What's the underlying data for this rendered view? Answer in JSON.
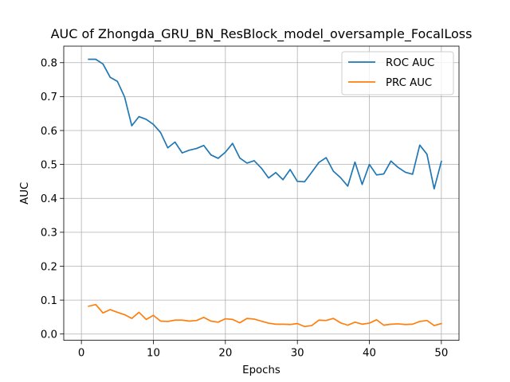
{
  "chart_data": {
    "type": "line",
    "title": "AUC of Zhongda_GRU_BN_ResBlock_model_oversample_FocalLoss",
    "xlabel": "Epochs",
    "ylabel": "AUC",
    "xlim": [
      -2.45,
      52.45
    ],
    "ylim": [
      -0.0185,
      0.8487
    ],
    "xticks": [
      0,
      10,
      20,
      30,
      40,
      50
    ],
    "yticks": [
      0.0,
      0.1,
      0.2,
      0.3,
      0.4,
      0.5,
      0.6,
      0.7,
      0.8
    ],
    "xtick_labels": [
      "0",
      "10",
      "20",
      "30",
      "40",
      "50"
    ],
    "ytick_labels": [
      "0.0",
      "0.1",
      "0.2",
      "0.3",
      "0.4",
      "0.5",
      "0.6",
      "0.7",
      "0.8"
    ],
    "grid": true,
    "legend_position": "upper right",
    "x": [
      1,
      2,
      3,
      4,
      5,
      6,
      7,
      8,
      9,
      10,
      11,
      12,
      13,
      14,
      15,
      16,
      17,
      18,
      19,
      20,
      21,
      22,
      23,
      24,
      25,
      26,
      27,
      28,
      29,
      30,
      31,
      32,
      33,
      34,
      35,
      36,
      37,
      38,
      39,
      40,
      41,
      42,
      43,
      44,
      45,
      46,
      47,
      48,
      49,
      50
    ],
    "series": [
      {
        "name": "ROC AUC",
        "color": "#1f77b4",
        "values": [
          0.81,
          0.81,
          0.796,
          0.757,
          0.745,
          0.699,
          0.614,
          0.641,
          0.633,
          0.618,
          0.594,
          0.549,
          0.566,
          0.534,
          0.542,
          0.547,
          0.556,
          0.528,
          0.518,
          0.536,
          0.562,
          0.519,
          0.504,
          0.511,
          0.489,
          0.46,
          0.476,
          0.455,
          0.485,
          0.45,
          0.449,
          0.477,
          0.506,
          0.52,
          0.48,
          0.461,
          0.436,
          0.507,
          0.441,
          0.5,
          0.469,
          0.472,
          0.51,
          0.491,
          0.477,
          0.471,
          0.557,
          0.53,
          0.428,
          0.509
        ]
      },
      {
        "name": "PRC AUC",
        "color": "#ff7f0e",
        "values": [
          0.082,
          0.087,
          0.062,
          0.072,
          0.064,
          0.057,
          0.046,
          0.064,
          0.043,
          0.055,
          0.038,
          0.037,
          0.041,
          0.041,
          0.038,
          0.04,
          0.049,
          0.038,
          0.035,
          0.045,
          0.043,
          0.033,
          0.046,
          0.044,
          0.038,
          0.032,
          0.029,
          0.029,
          0.028,
          0.031,
          0.022,
          0.025,
          0.041,
          0.04,
          0.046,
          0.033,
          0.026,
          0.035,
          0.029,
          0.032,
          0.042,
          0.026,
          0.029,
          0.03,
          0.028,
          0.029,
          0.037,
          0.04,
          0.025,
          0.031
        ]
      }
    ]
  }
}
